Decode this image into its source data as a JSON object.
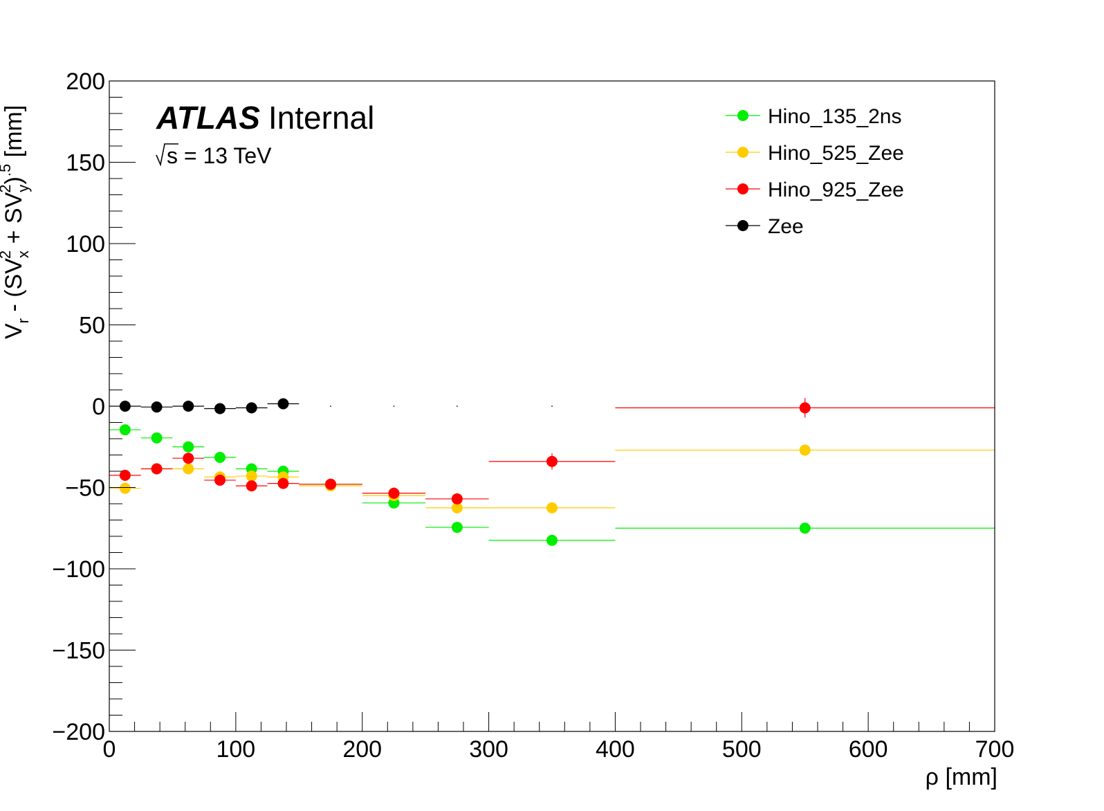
{
  "chart_data": {
    "type": "scatter",
    "xlabel": "ρ [mm]",
    "ylabel": "V_r - (SV_x^2 + SV_y^2)^.5 [mm]",
    "xlim": [
      0,
      700
    ],
    "ylim": [
      -200,
      200
    ],
    "x_ticks": [
      "0",
      "100",
      "200",
      "300",
      "400",
      "500",
      "600",
      "700"
    ],
    "y_ticks": [
      "200",
      "150",
      "100",
      "50",
      "0",
      "−50",
      "−100",
      "−150",
      "−200"
    ],
    "grid": false,
    "legend_position": "top-right",
    "annotation": {
      "experiment": "ATLAS",
      "status": "Internal",
      "energy": "s = 13 TeV"
    },
    "bins": [
      [
        0,
        25
      ],
      [
        25,
        50
      ],
      [
        50,
        75
      ],
      [
        75,
        100
      ],
      [
        100,
        125
      ],
      [
        125,
        150
      ],
      [
        150,
        200
      ],
      [
        200,
        250
      ],
      [
        250,
        300
      ],
      [
        300,
        400
      ],
      [
        400,
        700
      ]
    ],
    "series": [
      {
        "name": "Hino_135_2ns",
        "color": "#00ee00",
        "points": [
          {
            "x": 12.5,
            "xlo": 0,
            "xhi": 25,
            "y": -14.5,
            "err": 1.5
          },
          {
            "x": 37.5,
            "xlo": 25,
            "xhi": 50,
            "y": -19.5,
            "err": 1.5
          },
          {
            "x": 62.5,
            "xlo": 50,
            "xhi": 75,
            "y": -25,
            "err": 1.5
          },
          {
            "x": 87.5,
            "xlo": 75,
            "xhi": 100,
            "y": -31.5,
            "err": 1.5
          },
          {
            "x": 112.5,
            "xlo": 100,
            "xhi": 125,
            "y": -38.5,
            "err": 1.5
          },
          {
            "x": 137.5,
            "xlo": 125,
            "xhi": 150,
            "y": -40,
            "err": 1.5
          },
          {
            "x": 175,
            "xlo": 150,
            "xhi": 200,
            "y": -48,
            "err": 1.5
          },
          {
            "x": 225,
            "xlo": 200,
            "xhi": 250,
            "y": -59.5,
            "err": 2
          },
          {
            "x": 275,
            "xlo": 250,
            "xhi": 300,
            "y": -74.5,
            "err": 2
          },
          {
            "x": 350,
            "xlo": 300,
            "xhi": 400,
            "y": -82.5,
            "err": 2
          },
          {
            "x": 550,
            "xlo": 400,
            "xhi": 700,
            "y": -75,
            "err": 2
          }
        ]
      },
      {
        "name": "Hino_525_Zee",
        "color": "#ffcc00",
        "points": [
          {
            "x": 12.5,
            "xlo": 0,
            "xhi": 25,
            "y": -50.5,
            "err": 1.5
          },
          {
            "x": 37.5,
            "xlo": 25,
            "xhi": 50,
            "y": -38.5,
            "err": 1.5
          },
          {
            "x": 62.5,
            "xlo": 50,
            "xhi": 75,
            "y": -38.5,
            "err": 1.5
          },
          {
            "x": 87.5,
            "xlo": 75,
            "xhi": 100,
            "y": -43.5,
            "err": 1.5
          },
          {
            "x": 112.5,
            "xlo": 100,
            "xhi": 125,
            "y": -43,
            "err": 1.5
          },
          {
            "x": 137.5,
            "xlo": 125,
            "xhi": 150,
            "y": -43.5,
            "err": 1.5
          },
          {
            "x": 175,
            "xlo": 150,
            "xhi": 200,
            "y": -49,
            "err": 1.5
          },
          {
            "x": 225,
            "xlo": 200,
            "xhi": 250,
            "y": -55,
            "err": 2
          },
          {
            "x": 275,
            "xlo": 250,
            "xhi": 300,
            "y": -62.5,
            "err": 2
          },
          {
            "x": 350,
            "xlo": 300,
            "xhi": 400,
            "y": -62.5,
            "err": 2
          },
          {
            "x": 550,
            "xlo": 400,
            "xhi": 700,
            "y": -27,
            "err": 2
          }
        ]
      },
      {
        "name": "Hino_925_Zee",
        "color": "#ff0000",
        "points": [
          {
            "x": 12.5,
            "xlo": 0,
            "xhi": 25,
            "y": -42.5,
            "err": 2
          },
          {
            "x": 37.5,
            "xlo": 25,
            "xhi": 50,
            "y": -38.5,
            "err": 2
          },
          {
            "x": 62.5,
            "xlo": 50,
            "xhi": 75,
            "y": -32,
            "err": 3
          },
          {
            "x": 87.5,
            "xlo": 75,
            "xhi": 100,
            "y": -45.5,
            "err": 3
          },
          {
            "x": 112.5,
            "xlo": 100,
            "xhi": 125,
            "y": -49,
            "err": 3
          },
          {
            "x": 137.5,
            "xlo": 125,
            "xhi": 150,
            "y": -47.5,
            "err": 3
          },
          {
            "x": 175,
            "xlo": 150,
            "xhi": 200,
            "y": -48,
            "err": 3
          },
          {
            "x": 225,
            "xlo": 200,
            "xhi": 250,
            "y": -53.5,
            "err": 3.5
          },
          {
            "x": 275,
            "xlo": 250,
            "xhi": 300,
            "y": -57,
            "err": 3.5
          },
          {
            "x": 350,
            "xlo": 300,
            "xhi": 400,
            "y": -34,
            "err": 5
          },
          {
            "x": 550,
            "xlo": 400,
            "xhi": 700,
            "y": -1,
            "err": 6
          }
        ]
      },
      {
        "name": "Zee",
        "color": "#000000",
        "points": [
          {
            "x": 12.5,
            "xlo": 0,
            "xhi": 25,
            "y": 0,
            "err": 0.8
          },
          {
            "x": 37.5,
            "xlo": 25,
            "xhi": 50,
            "y": -0.5,
            "err": 0.8
          },
          {
            "x": 62.5,
            "xlo": 50,
            "xhi": 75,
            "y": 0,
            "err": 0.8
          },
          {
            "x": 87.5,
            "xlo": 75,
            "xhi": 100,
            "y": -1.5,
            "err": 0.8
          },
          {
            "x": 112.5,
            "xlo": 100,
            "xhi": 125,
            "y": -1,
            "err": 0.8
          },
          {
            "x": 137.5,
            "xlo": 125,
            "xhi": 150,
            "y": 1.5,
            "err": 0.8
          },
          {
            "x": 175,
            "xlo": 175,
            "xhi": 175,
            "y": 0,
            "err": 0,
            "empty": true
          },
          {
            "x": 225,
            "xlo": 225,
            "xhi": 225,
            "y": 0,
            "err": 0,
            "empty": true
          },
          {
            "x": 275,
            "xlo": 275,
            "xhi": 275,
            "y": 0,
            "err": 0,
            "empty": true
          },
          {
            "x": 350,
            "xlo": 350,
            "xhi": 350,
            "y": 0,
            "err": 0,
            "empty": true
          }
        ]
      }
    ]
  }
}
